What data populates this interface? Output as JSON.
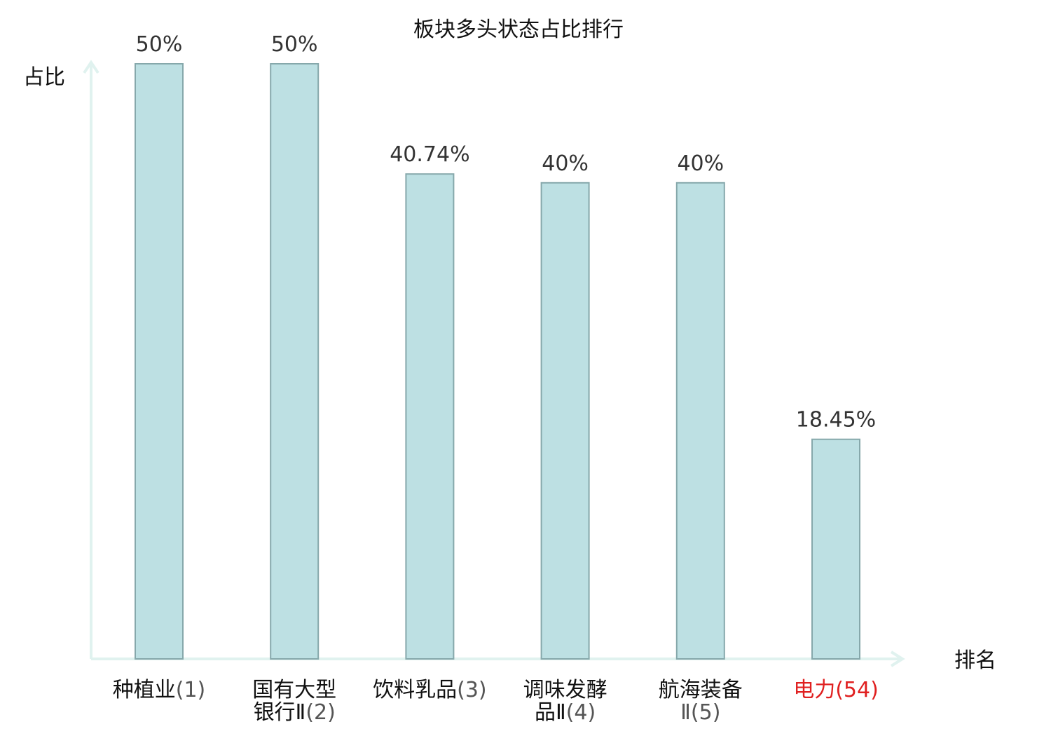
{
  "chart_data": {
    "type": "bar",
    "title": "板块多头状态占比排行",
    "ylabel": "占比",
    "xlabel": "排名",
    "ylim": [
      0,
      50
    ],
    "categories": [
      {
        "lines": [
          {
            "name": "种植业",
            "rank": "(1)"
          }
        ],
        "highlight": false
      },
      {
        "lines": [
          {
            "name": "国有大型",
            "rank": ""
          },
          {
            "name": "银行Ⅱ",
            "rank": "(2)"
          }
        ],
        "highlight": false
      },
      {
        "lines": [
          {
            "name": "饮料乳品",
            "rank": "(3)"
          }
        ],
        "highlight": false
      },
      {
        "lines": [
          {
            "name": "调味发酵",
            "rank": ""
          },
          {
            "name": "品Ⅱ",
            "rank": "(4)"
          }
        ],
        "highlight": false
      },
      {
        "lines": [
          {
            "name": "航海装备",
            "rank": ""
          },
          {
            "name": "",
            "rank": "Ⅱ(5)"
          }
        ],
        "highlight": false
      },
      {
        "lines": [
          {
            "name": "电力",
            "rank": "(54)"
          }
        ],
        "highlight": true
      }
    ],
    "values": [
      50,
      50,
      40.74,
      40,
      40,
      18.45
    ],
    "value_labels": [
      "50%",
      "50%",
      "40.74%",
      "40%",
      "40%",
      "18.45%"
    ],
    "colors": {
      "bar_fill": "#bde0e3",
      "bar_stroke": "#86a8ab",
      "axis": "#e0f2ef",
      "highlight": "#e02020"
    },
    "grid": false
  }
}
